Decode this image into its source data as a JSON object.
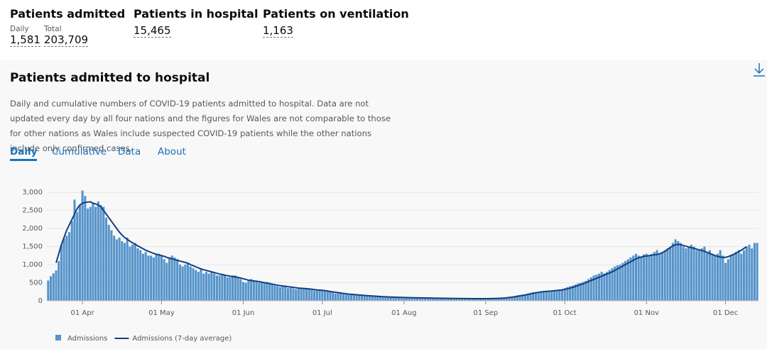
{
  "headline": [
    {
      "title": "Patients admitted",
      "items": [
        {
          "label": "Daily",
          "value": "1,581"
        },
        {
          "label": "Total",
          "value": "203,709"
        }
      ]
    },
    {
      "title": "Patients in hospital",
      "items": [
        {
          "value": "15,465"
        }
      ]
    },
    {
      "title": "Patients on ventilation",
      "items": [
        {
          "value": "1,163"
        }
      ]
    }
  ],
  "card": {
    "title": "Patients admitted to hospital",
    "description": "Daily and cumulative numbers of COVID-19 patients admitted to hospital. Data are not updated every day by all four nations and the figures for Wales are not comparable to those for other nations as Wales include suspected COVID-19 patients while the other nations include only confirmed cases.",
    "tabs": [
      "Daily",
      "Cumulative",
      "Data",
      "About"
    ]
  },
  "chart_data": {
    "type": "bar",
    "grid": true,
    "ylim": [
      0,
      3200
    ],
    "yticks": [
      0,
      500,
      {
        "value": 1000,
        "label": "1,000"
      },
      {
        "value": 1500,
        "label": "1,500"
      },
      {
        "value": 2000,
        "label": "2,000"
      },
      {
        "value": 2500,
        "label": "2,500"
      },
      {
        "value": 3000,
        "label": "3,000"
      }
    ],
    "categories": [
      null,
      null,
      null,
      null,
      null,
      null,
      null,
      null,
      null,
      null,
      null,
      null,
      null,
      "01 Apr",
      null,
      null,
      null,
      null,
      null,
      null,
      null,
      null,
      null,
      null,
      null,
      null,
      null,
      null,
      null,
      null,
      null,
      null,
      null,
      null,
      null,
      null,
      null,
      null,
      null,
      null,
      null,
      null,
      null,
      "01 May",
      null,
      null,
      null,
      null,
      null,
      null,
      null,
      null,
      null,
      null,
      null,
      null,
      null,
      null,
      null,
      null,
      null,
      null,
      null,
      null,
      null,
      null,
      null,
      null,
      null,
      null,
      null,
      null,
      null,
      null,
      "01 Jun",
      null,
      null,
      null,
      null,
      null,
      null,
      null,
      null,
      null,
      null,
      null,
      null,
      null,
      null,
      null,
      null,
      null,
      null,
      null,
      null,
      null,
      null,
      null,
      null,
      null,
      null,
      null,
      null,
      null,
      "01 Jul",
      null,
      null,
      null,
      null,
      null,
      null,
      null,
      null,
      null,
      null,
      null,
      null,
      null,
      null,
      null,
      null,
      null,
      null,
      null,
      null,
      null,
      null,
      null,
      null,
      null,
      null,
      null,
      null,
      null,
      null,
      "01 Aug",
      null,
      null,
      null,
      null,
      null,
      null,
      null,
      null,
      null,
      null,
      null,
      null,
      null,
      null,
      null,
      null,
      null,
      null,
      null,
      null,
      null,
      null,
      null,
      null,
      null,
      null,
      null,
      null,
      null,
      null,
      "01 Sep",
      null,
      null,
      null,
      null,
      null,
      null,
      null,
      null,
      null,
      null,
      null,
      null,
      null,
      null,
      null,
      null,
      null,
      null,
      null,
      null,
      null,
      null,
      null,
      null,
      null,
      null,
      null,
      null,
      null,
      "01 Oct",
      null,
      null,
      null,
      null,
      null,
      null,
      null,
      null,
      null,
      null,
      null,
      null,
      null,
      null,
      null,
      null,
      null,
      null,
      null,
      null,
      null,
      null,
      null,
      null,
      null,
      null,
      null,
      null,
      null,
      null,
      "01 Nov",
      null,
      null,
      null,
      null,
      null,
      null,
      null,
      null,
      null,
      null,
      null,
      null,
      null,
      null,
      null,
      null,
      null,
      null,
      null,
      null,
      null,
      null,
      null,
      null,
      null,
      null,
      null,
      null,
      null,
      "01 Dec",
      null,
      null,
      null,
      null,
      null,
      null,
      null,
      null,
      null,
      null,
      null,
      null
    ],
    "series": [
      {
        "name": "Admissions",
        "type": "bar",
        "color": "#5694ca",
        "values": [
          560,
          680,
          760,
          840,
          1100,
          1550,
          1720,
          1800,
          1900,
          2200,
          2800,
          2450,
          2650,
          3050,
          2900,
          2550,
          2600,
          2700,
          2600,
          2750,
          2650,
          2600,
          2300,
          2100,
          1950,
          1800,
          1700,
          1750,
          1650,
          1600,
          1750,
          1500,
          1550,
          1600,
          1450,
          1400,
          1300,
          1350,
          1250,
          1250,
          1200,
          1300,
          1300,
          1250,
          1150,
          1050,
          1200,
          1250,
          1200,
          1150,
          1000,
          950,
          1000,
          1050,
          950,
          900,
          850,
          800,
          900,
          750,
          800,
          750,
          800,
          750,
          700,
          700,
          750,
          700,
          650,
          650,
          700,
          700,
          650,
          600,
          520,
          500,
          550,
          600,
          550,
          550,
          500,
          500,
          480,
          520,
          500,
          450,
          420,
          400,
          380,
          400,
          420,
          350,
          360,
          340,
          320,
          330,
          350,
          340,
          330,
          320,
          300,
          280,
          300,
          280,
          300,
          290,
          260,
          250,
          240,
          200,
          220,
          210,
          200,
          180,
          170,
          160,
          170,
          160,
          150,
          140,
          150,
          140,
          130,
          140,
          130,
          120,
          120,
          110,
          110,
          100,
          110,
          100,
          90,
          100,
          95,
          90,
          85,
          90,
          85,
          80,
          85,
          80,
          75,
          80,
          75,
          70,
          75,
          70,
          70,
          65,
          70,
          70,
          65,
          60,
          65,
          60,
          60,
          55,
          60,
          60,
          55,
          55,
          60,
          60,
          55,
          55,
          60,
          60,
          65,
          70,
          70,
          75,
          80,
          85,
          100,
          110,
          120,
          130,
          150,
          160,
          170,
          180,
          200,
          220,
          240,
          230,
          250,
          260,
          270,
          250,
          270,
          260,
          280,
          300,
          310,
          320,
          350,
          380,
          400,
          420,
          450,
          480,
          500,
          520,
          550,
          600,
          650,
          700,
          720,
          750,
          800,
          760,
          800,
          850,
          900,
          950,
          980,
          1000,
          1050,
          1100,
          1150,
          1200,
          1250,
          1300,
          1250,
          1200,
          1280,
          1300,
          1250,
          1300,
          1350,
          1400,
          1300,
          1350,
          1400,
          1450,
          1500,
          1600,
          1700,
          1650,
          1600,
          1500,
          1450,
          1500,
          1550,
          1500,
          1400,
          1400,
          1450,
          1500,
          1350,
          1400,
          1300,
          1250,
          1300,
          1400,
          1250,
          1050,
          1150,
          1250,
          1300,
          1350,
          1400,
          1300,
          1400,
          1500,
          1550,
          1450,
          1600,
          1600
        ]
      },
      {
        "name": "Admissions (7-day average)",
        "type": "line",
        "color": "#12407f",
        "values": [
          null,
          null,
          null,
          1050,
          1300,
          1550,
          1750,
          1950,
          2100,
          2250,
          2400,
          2550,
          2650,
          2700,
          2720,
          2730,
          2740,
          2700,
          2680,
          2650,
          2600,
          2500,
          2400,
          2300,
          2200,
          2100,
          2000,
          1900,
          1820,
          1750,
          1700,
          1650,
          1600,
          1560,
          1520,
          1480,
          1440,
          1400,
          1370,
          1340,
          1310,
          1290,
          1270,
          1250,
          1230,
          1200,
          1180,
          1160,
          1140,
          1120,
          1100,
          1080,
          1060,
          1040,
          1000,
          970,
          940,
          910,
          880,
          860,
          840,
          820,
          800,
          780,
          760,
          740,
          725,
          710,
          695,
          680,
          670,
          660,
          645,
          630,
          610,
          590,
          570,
          560,
          550,
          540,
          530,
          515,
          500,
          490,
          475,
          460,
          445,
          430,
          420,
          410,
          400,
          390,
          380,
          370,
          360,
          350,
          345,
          340,
          335,
          330,
          320,
          310,
          300,
          295,
          290,
          280,
          270,
          255,
          245,
          235,
          225,
          215,
          205,
          195,
          185,
          178,
          172,
          166,
          160,
          154,
          148,
          142,
          137,
          132,
          127,
          122,
          118,
          114,
          110,
          106,
          103,
          100,
          97,
          95,
          93,
          91,
          89,
          87,
          85,
          84,
          82,
          80,
          79,
          78,
          76,
          75,
          74,
          72,
          71,
          70,
          69,
          68,
          67,
          66,
          65,
          64,
          63,
          62,
          62,
          61,
          60,
          60,
          59,
          59,
          59,
          58,
          59,
          60,
          61,
          63,
          65,
          68,
          72,
          77,
          83,
          90,
          100,
          110,
          122,
          135,
          148,
          160,
          175,
          190,
          205,
          220,
          232,
          242,
          252,
          260,
          265,
          270,
          278,
          285,
          292,
          300,
          315,
          330,
          350,
          370,
          395,
          420,
          445,
          470,
          500,
          530,
          560,
          590,
          620,
          650,
          680,
          710,
          740,
          770,
          800,
          840,
          880,
          920,
          960,
          1000,
          1040,
          1080,
          1120,
          1160,
          1190,
          1210,
          1230,
          1240,
          1250,
          1260,
          1270,
          1280,
          1300,
          1330,
          1370,
          1420,
          1470,
          1520,
          1550,
          1560,
          1550,
          1530,
          1510,
          1490,
          1470,
          1450,
          1430,
          1410,
          1390,
          1370,
          1340,
          1310,
          1280,
          1250,
          1230,
          1210,
          1200,
          1200,
          1220,
          1250,
          1280,
          1320,
          1360,
          1400,
          1450,
          1500,
          null,
          null,
          null,
          null
        ]
      }
    ]
  }
}
